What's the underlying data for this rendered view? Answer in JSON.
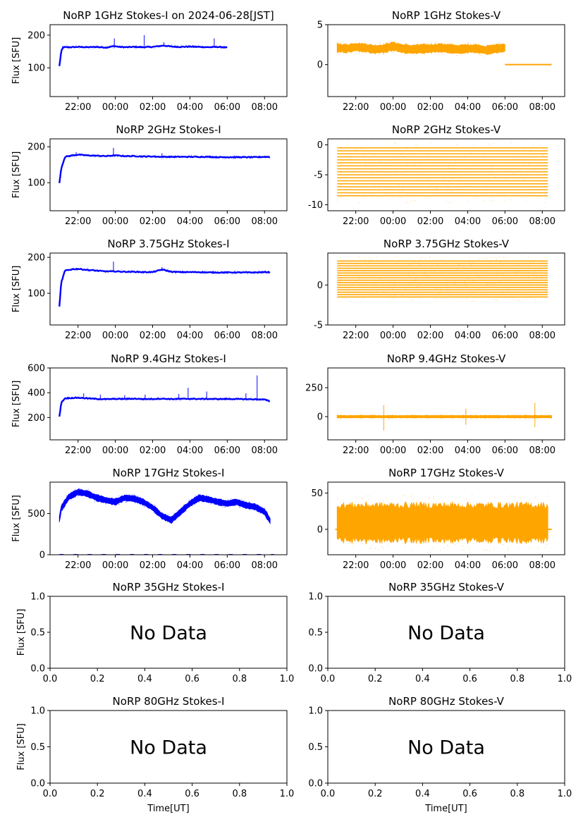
{
  "figure": {
    "x_axis_label": "Time[UT]",
    "no_data_text": "No Data"
  },
  "colors": {
    "stokes_i": "#0000ff",
    "stokes_v": "#ffa500",
    "axes": "#000000",
    "background": "#ffffff"
  },
  "chart_data": [
    {
      "id": "p1i",
      "type": "scatter",
      "title": "NoRP 1GHz Stokes-I on 2024-06-28[JST]",
      "ylabel": "Flux [SFU]",
      "xlabel": "",
      "ylim": [
        12,
        232
      ],
      "yticks": [
        100,
        200
      ],
      "xticks": [
        "22:00",
        "00:00",
        "02:00",
        "04:00",
        "06:00",
        "08:00"
      ],
      "has_data": true,
      "color_key": "stokes_i",
      "series": {
        "name": "Stokes-I",
        "x_hours": [
          21.0,
          21.1,
          21.2,
          21.6,
          22.0,
          22.5,
          23.0,
          23.5,
          23.9,
          24.0,
          24.2,
          24.6,
          25.0,
          25.5,
          26.0,
          26.6,
          27.0,
          27.5,
          28.0,
          28.5,
          29.0,
          29.5,
          30.0
        ],
        "values": [
          105,
          150,
          163,
          163,
          164,
          163,
          164,
          162,
          166,
          166,
          164,
          163,
          164,
          163,
          164,
          168,
          165,
          164,
          165,
          164,
          163,
          164,
          162
        ]
      },
      "spikes": [
        [
          23.95,
          190
        ],
        [
          25.55,
          200
        ],
        [
          26.6,
          178
        ],
        [
          29.3,
          190
        ]
      ]
    },
    {
      "id": "p1v",
      "type": "scatter",
      "title": "NoRP 1GHz Stokes-V",
      "ylabel": "",
      "xlabel": "",
      "ylim": [
        -4,
        5
      ],
      "yticks": [
        0,
        5
      ],
      "xticks": [
        "22:00",
        "00:00",
        "02:00",
        "04:00",
        "06:00",
        "08:00"
      ],
      "has_data": true,
      "color_key": "stokes_v",
      "series": {
        "name": "Stokes-V",
        "x_hours": [
          21.0,
          21.5,
          22.0,
          22.5,
          23.0,
          23.5,
          24.0,
          24.5,
          25.0,
          25.5,
          26.0,
          26.5,
          27.0,
          27.5,
          28.0,
          28.5,
          29.0,
          29.5,
          30.0
        ],
        "values": [
          2.1,
          2.0,
          2.2,
          2.1,
          1.9,
          2.0,
          2.3,
          2.0,
          1.9,
          2.0,
          2.0,
          2.1,
          2.0,
          1.9,
          2.0,
          2.0,
          1.8,
          2.0,
          2.1
        ],
        "spread": 0.5
      },
      "flat_segment": {
        "x_start": 30.0,
        "x_end": 32.5,
        "value": 0
      }
    },
    {
      "id": "p2i",
      "type": "scatter",
      "title": "NoRP 2GHz Stokes-I",
      "ylabel": "Flux [SFU]",
      "xlabel": "",
      "ylim": [
        22,
        222
      ],
      "yticks": [
        100,
        200
      ],
      "xticks": [
        "22:00",
        "00:00",
        "02:00",
        "04:00",
        "06:00",
        "08:00"
      ],
      "has_data": true,
      "color_key": "stokes_i",
      "series": {
        "name": "Stokes-I",
        "x_hours": [
          21.0,
          21.1,
          21.3,
          21.7,
          22.0,
          22.5,
          23.0,
          23.5,
          24.0,
          24.5,
          25.0,
          25.5,
          26.0,
          26.5,
          27.0,
          27.5,
          28.0,
          28.5,
          29.0,
          29.5,
          30.0,
          30.5,
          31.0,
          31.5,
          32.0,
          32.3
        ],
        "values": [
          98,
          140,
          172,
          176,
          178,
          176,
          175,
          174,
          176,
          174,
          174,
          173,
          173,
          172,
          172,
          172,
          172,
          172,
          172,
          171,
          171,
          171,
          171,
          171,
          172,
          172
        ]
      },
      "spikes": [
        [
          21.9,
          185
        ],
        [
          23.9,
          197
        ],
        [
          26.5,
          182
        ]
      ]
    },
    {
      "id": "p2v",
      "type": "scatter",
      "title": "NoRP 2GHz Stokes-V",
      "ylabel": "",
      "xlabel": "",
      "ylim": [
        -11,
        1
      ],
      "yticks": [
        -10,
        -5,
        0
      ],
      "xticks": [
        "22:00",
        "00:00",
        "02:00",
        "04:00",
        "06:00",
        "08:00"
      ],
      "has_data": true,
      "color_key": "stokes_v",
      "bands": {
        "x_start": 21.0,
        "x_end": 32.3,
        "from": -8.5,
        "to": -0.5,
        "step": 0.5
      }
    },
    {
      "id": "p375i",
      "type": "scatter",
      "title": "NoRP 3.75GHz Stokes-I",
      "ylabel": "Flux [SFU]",
      "xlabel": "",
      "ylim": [
        12,
        212
      ],
      "yticks": [
        100,
        200
      ],
      "xticks": [
        "22:00",
        "00:00",
        "02:00",
        "04:00",
        "06:00",
        "08:00"
      ],
      "has_data": true,
      "color_key": "stokes_i",
      "series": {
        "name": "Stokes-I",
        "x_hours": [
          21.0,
          21.1,
          21.3,
          21.7,
          22.0,
          22.5,
          23.0,
          23.5,
          24.0,
          24.5,
          25.0,
          25.5,
          26.0,
          26.5,
          27.0,
          27.5,
          28.0,
          28.5,
          29.0,
          29.5,
          30.0,
          30.5,
          31.0,
          31.5,
          32.0,
          32.3
        ],
        "values": [
          62,
          130,
          163,
          167,
          168,
          165,
          163,
          161,
          161,
          160,
          160,
          159,
          159,
          166,
          160,
          159,
          159,
          159,
          158,
          158,
          158,
          158,
          158,
          158,
          159,
          159
        ]
      },
      "spikes": [
        [
          23.9,
          188
        ],
        [
          26.5,
          173
        ]
      ]
    },
    {
      "id": "p375v",
      "type": "scatter",
      "title": "NoRP 3.75GHz Stokes-V",
      "ylabel": "",
      "xlabel": "",
      "ylim": [
        -5,
        4
      ],
      "yticks": [
        -5,
        0
      ],
      "xticks": [
        "22:00",
        "00:00",
        "02:00",
        "04:00",
        "06:00",
        "08:00"
      ],
      "has_data": true,
      "color_key": "stokes_v",
      "bands": {
        "x_start": 21.0,
        "x_end": 32.3,
        "from": -1.5,
        "to": 3.0,
        "step": 0.3
      }
    },
    {
      "id": "p94i",
      "type": "scatter",
      "title": "NoRP 9.4GHz Stokes-I",
      "ylabel": "Flux [SFU]",
      "xlabel": "",
      "ylim": [
        20,
        600
      ],
      "yticks": [
        200,
        400,
        600
      ],
      "xticks": [
        "22:00",
        "00:00",
        "02:00",
        "04:00",
        "06:00",
        "08:00"
      ],
      "has_data": true,
      "color_key": "stokes_i",
      "series": {
        "name": "Stokes-I",
        "x_hours": [
          21.0,
          21.1,
          21.3,
          21.7,
          22.0,
          22.5,
          23.0,
          23.5,
          24.0,
          24.5,
          25.0,
          25.5,
          26.0,
          26.5,
          27.0,
          27.5,
          28.0,
          28.5,
          29.0,
          29.5,
          30.0,
          30.5,
          31.0,
          31.5,
          32.0,
          32.3
        ],
        "values": [
          205,
          320,
          355,
          358,
          360,
          355,
          350,
          348,
          350,
          350,
          352,
          349,
          350,
          352,
          349,
          350,
          351,
          350,
          350,
          349,
          350,
          349,
          348,
          347,
          345,
          330
        ]
      },
      "spikes": [
        [
          22.3,
          395
        ],
        [
          23.2,
          385
        ],
        [
          24.5,
          380
        ],
        [
          25.6,
          385
        ],
        [
          27.4,
          390
        ],
        [
          27.9,
          440
        ],
        [
          28.9,
          410
        ],
        [
          31.0,
          395
        ],
        [
          31.6,
          540
        ]
      ]
    },
    {
      "id": "p94v",
      "type": "scatter",
      "title": "NoRP 9.4GHz Stokes-V",
      "ylabel": "",
      "xlabel": "",
      "ylim": [
        -200,
        420
      ],
      "yticks": [
        0,
        250
      ],
      "xticks": [
        "22:00",
        "00:00",
        "02:00",
        "04:00",
        "06:00",
        "08:00"
      ],
      "has_data": true,
      "color_key": "stokes_v",
      "series": {
        "name": "Stokes-V",
        "x_hours": [
          21.0,
          32.5
        ],
        "values": [
          0,
          0
        ],
        "spread": 10
      },
      "spikes": [
        [
          23.5,
          -120
        ],
        [
          23.5,
          100
        ],
        [
          27.9,
          -70
        ],
        [
          27.9,
          70
        ],
        [
          31.6,
          -90
        ],
        [
          31.6,
          120
        ]
      ]
    },
    {
      "id": "p17i",
      "type": "scatter",
      "title": "NoRP 17GHz Stokes-I",
      "ylabel": "Flux [SFU]",
      "xlabel": "",
      "ylim": [
        0,
        880
      ],
      "yticks": [
        0,
        500
      ],
      "xticks": [
        "22:00",
        "00:00",
        "02:00",
        "04:00",
        "06:00",
        "08:00"
      ],
      "has_data": true,
      "color_key": "stokes_i",
      "series": {
        "name": "Stokes-I",
        "x_hours": [
          21.0,
          21.1,
          21.5,
          22.0,
          22.5,
          23.0,
          23.5,
          24.0,
          24.5,
          25.0,
          25.5,
          26.0,
          26.5,
          27.0,
          27.5,
          28.0,
          28.5,
          29.0,
          29.5,
          30.0,
          30.5,
          31.0,
          31.5,
          32.0,
          32.3
        ],
        "values": [
          430,
          560,
          700,
          760,
          740,
          690,
          660,
          640,
          690,
          680,
          640,
          570,
          470,
          420,
          520,
          620,
          690,
          670,
          640,
          620,
          640,
          600,
          580,
          520,
          410
        ],
        "spread": 35
      },
      "baseline": {
        "x_start": 21.0,
        "x_end": 32.5,
        "value": 0
      }
    },
    {
      "id": "p17v",
      "type": "scatter",
      "title": "NoRP 17GHz Stokes-V",
      "ylabel": "",
      "xlabel": "",
      "ylim": [
        -35,
        65
      ],
      "yticks": [
        0,
        50
      ],
      "xticks": [
        "22:00",
        "00:00",
        "02:00",
        "04:00",
        "06:00",
        "08:00"
      ],
      "has_data": true,
      "color_key": "stokes_v",
      "series": {
        "name": "Stokes-V",
        "x_hours": [
          21.0,
          32.3
        ],
        "values": [
          9,
          9
        ],
        "spread": 24
      },
      "flat_segment": {
        "x_start": 20.9,
        "x_end": 32.5,
        "value": 0
      }
    },
    {
      "id": "p35i",
      "type": "scatter",
      "title": "NoRP 35GHz Stokes-I",
      "ylabel": "Flux [SFU]",
      "xlabel": "",
      "ylim": [
        0,
        1
      ],
      "xlim": [
        0,
        1
      ],
      "yticks": [
        "0.0",
        "0.5",
        "1.0"
      ],
      "xticks": [
        "0.0",
        "0.2",
        "0.4",
        "0.6",
        "0.8",
        "1.0"
      ],
      "has_data": false
    },
    {
      "id": "p35v",
      "type": "scatter",
      "title": "NoRP 35GHz Stokes-V",
      "ylabel": "",
      "xlabel": "",
      "ylim": [
        0,
        1
      ],
      "xlim": [
        0,
        1
      ],
      "yticks": [
        "0.0",
        "0.5",
        "1.0"
      ],
      "xticks": [
        "0.0",
        "0.2",
        "0.4",
        "0.6",
        "0.8",
        "1.0"
      ],
      "has_data": false
    },
    {
      "id": "p80i",
      "type": "scatter",
      "title": "NoRP 80GHz Stokes-I",
      "ylabel": "Flux [SFU]",
      "xlabel": "Time[UT]",
      "ylim": [
        0,
        1
      ],
      "xlim": [
        0,
        1
      ],
      "yticks": [
        "0.0",
        "0.5",
        "1.0"
      ],
      "xticks": [
        "0.0",
        "0.2",
        "0.4",
        "0.6",
        "0.8",
        "1.0"
      ],
      "has_data": false
    },
    {
      "id": "p80v",
      "type": "scatter",
      "title": "NoRP 80GHz Stokes-V",
      "ylabel": "",
      "xlabel": "Time[UT]",
      "ylim": [
        0,
        1
      ],
      "xlim": [
        0,
        1
      ],
      "yticks": [
        "0.0",
        "0.5",
        "1.0"
      ],
      "xticks": [
        "0.0",
        "0.2",
        "0.4",
        "0.6",
        "0.8",
        "1.0"
      ],
      "has_data": false
    }
  ]
}
